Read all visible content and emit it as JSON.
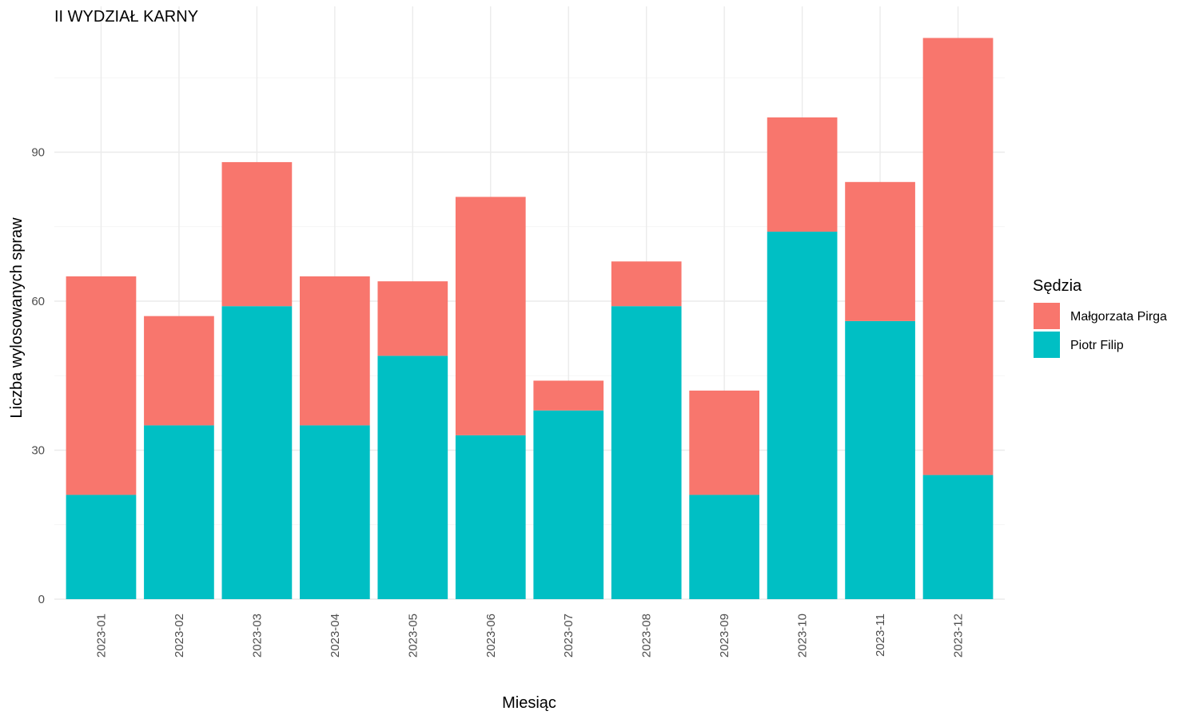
{
  "chart_data": {
    "type": "bar",
    "stacked": true,
    "title": "II WYDZIAŁ KARNY",
    "xlabel": "Miesiąc",
    "ylabel": "Liczba wylosowanych spraw",
    "categories": [
      "2023-01",
      "2023-02",
      "2023-03",
      "2023-04",
      "2023-05",
      "2023-06",
      "2023-07",
      "2023-08",
      "2023-09",
      "2023-10",
      "2023-11",
      "2023-12"
    ],
    "series": [
      {
        "name": "Piotr Filip",
        "color": "#00BFC4",
        "values": [
          21,
          35,
          59,
          35,
          49,
          33,
          38,
          59,
          21,
          74,
          56,
          25
        ]
      },
      {
        "name": "Małgorzata Pirga",
        "color": "#F8766D",
        "values": [
          44,
          22,
          29,
          30,
          15,
          48,
          6,
          9,
          21,
          23,
          28,
          88
        ]
      }
    ],
    "yticks": [
      0,
      30,
      60,
      90
    ],
    "ytick_labels": [
      "0",
      "30",
      "60",
      "90"
    ],
    "ylim": [
      0,
      113
    ],
    "grid": true,
    "legend": {
      "title": "Sędzia",
      "position": "right",
      "entries": [
        {
          "label": "Małgorzata Pirga",
          "color": "#F8766D"
        },
        {
          "label": "Piotr Filip",
          "color": "#00BFC4"
        }
      ]
    }
  }
}
